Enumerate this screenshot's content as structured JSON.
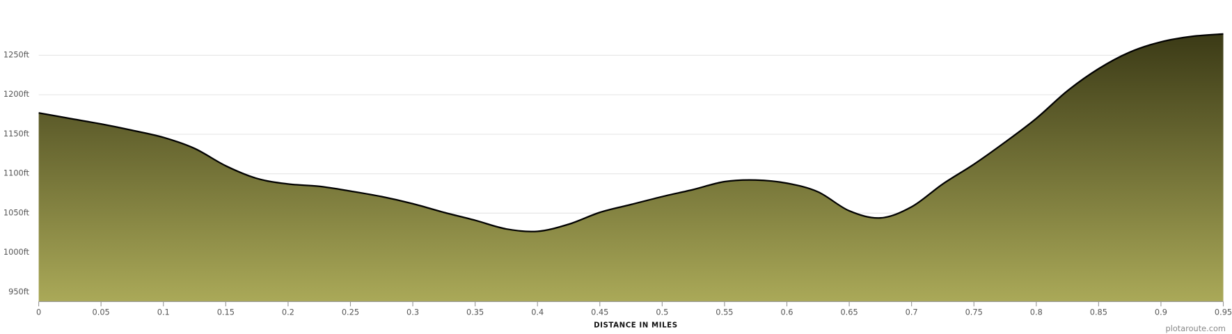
{
  "chart_data": {
    "type": "area",
    "xlabel": "DISTANCE IN MILES",
    "credit": "plotaroute.com",
    "x": [
      0,
      0.025,
      0.05,
      0.075,
      0.1,
      0.125,
      0.15,
      0.175,
      0.2,
      0.225,
      0.25,
      0.275,
      0.3,
      0.325,
      0.35,
      0.375,
      0.4,
      0.425,
      0.45,
      0.475,
      0.5,
      0.525,
      0.55,
      0.575,
      0.6,
      0.625,
      0.65,
      0.675,
      0.7,
      0.725,
      0.75,
      0.775,
      0.8,
      0.825,
      0.85,
      0.875,
      0.9,
      0.925,
      0.95
    ],
    "values": [
      1177,
      1170,
      1163,
      1155,
      1146,
      1132,
      1110,
      1094,
      1087,
      1084,
      1078,
      1071,
      1062,
      1051,
      1041,
      1030,
      1027,
      1036,
      1051,
      1061,
      1071,
      1080,
      1090,
      1092,
      1088,
      1077,
      1053,
      1044,
      1058,
      1087,
      1112,
      1140,
      1170,
      1205,
      1233,
      1254,
      1267,
      1274,
      1277
    ],
    "color": "#000000",
    "gradient": [
      "#3b3a16",
      "#aaa958"
    ],
    "xlim": [
      0,
      0.95
    ],
    "ylim": [
      938,
      1300
    ],
    "xticks": [
      0,
      0.05,
      0.1,
      0.15,
      0.2,
      0.25,
      0.3,
      0.35,
      0.4,
      0.45,
      0.5,
      0.55,
      0.6,
      0.65,
      0.7,
      0.75,
      0.8,
      0.85,
      0.9,
      0.95
    ],
    "yticks": [
      {
        "value": 950,
        "label": "950ft"
      },
      {
        "value": 1000,
        "label": "1000ft"
      },
      {
        "value": 1050,
        "label": "1050ft"
      },
      {
        "value": 1100,
        "label": "1100ft"
      },
      {
        "value": 1150,
        "label": "1150ft"
      },
      {
        "value": 1200,
        "label": "1200ft"
      },
      {
        "value": 1250,
        "label": "1250ft"
      }
    ],
    "grid": true
  }
}
